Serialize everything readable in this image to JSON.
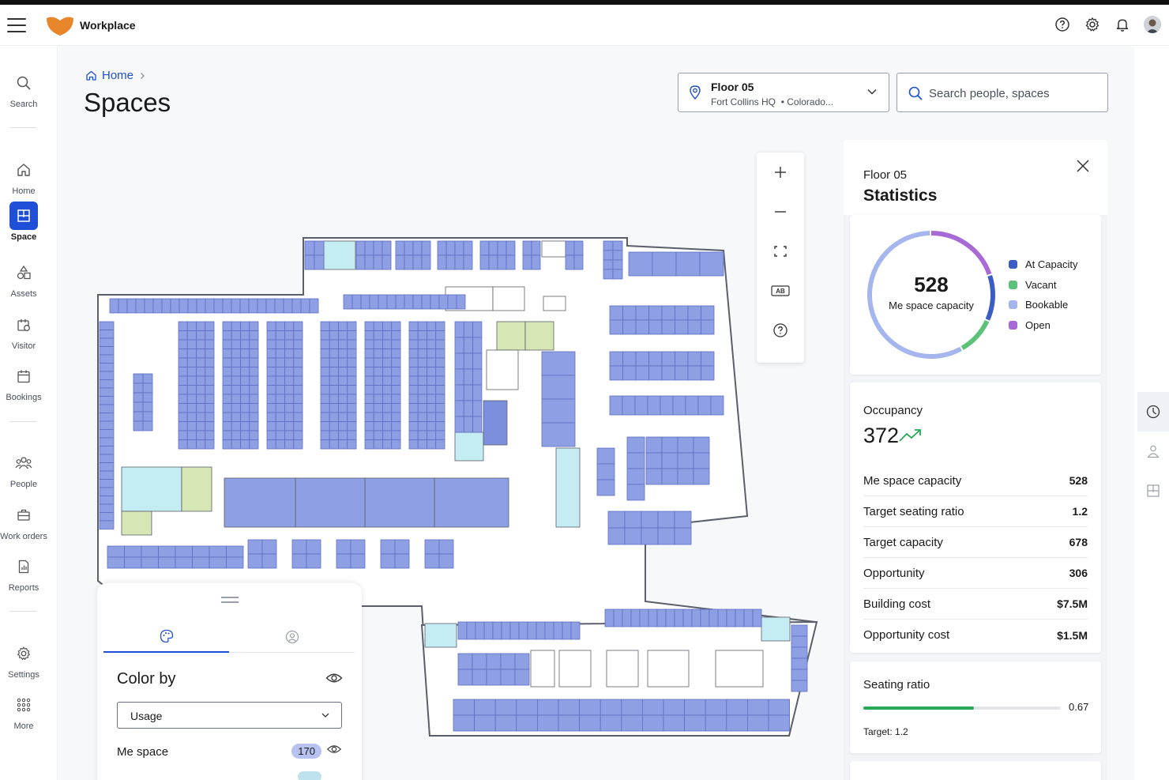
{
  "app": {
    "title": "Workplace"
  },
  "sidebar": {
    "items": [
      {
        "label": "Search",
        "icon": "search-icon"
      },
      {
        "label": "Home",
        "icon": "home-icon"
      },
      {
        "label": "Space",
        "icon": "floorplan-icon"
      },
      {
        "label": "Assets",
        "icon": "shapes-icon"
      },
      {
        "label": "Visitor",
        "icon": "visitor-badge-icon"
      },
      {
        "label": "Bookings",
        "icon": "calendar-icon"
      },
      {
        "label": "People",
        "icon": "people-icon"
      },
      {
        "label": "Work orders",
        "icon": "toolbox-icon"
      },
      {
        "label": "Reports",
        "icon": "report-icon"
      },
      {
        "label": "Settings",
        "icon": "gear-icon"
      },
      {
        "label": "More",
        "icon": "grid-dots-icon"
      }
    ]
  },
  "breadcrumb": {
    "home": "Home"
  },
  "page": {
    "title": "Spaces"
  },
  "floor_select": {
    "title": "Floor 05",
    "building": "Fort Collins HQ",
    "location": "• Colorado..."
  },
  "search": {
    "placeholder": "Search people, spaces"
  },
  "map_controls": {
    "label_toggle": "AB"
  },
  "color_panel": {
    "heading": "Color by",
    "select_value": "Usage",
    "rows": [
      {
        "label": "Me space",
        "count": "170"
      }
    ]
  },
  "stats": {
    "floor": "Floor 05",
    "title": "Statistics",
    "donut": {
      "center_value": "528",
      "center_label": "Me space capacity",
      "segments": [
        {
          "name": "At Capacity",
          "color": "#3a5ec6",
          "fraction": 0.12
        },
        {
          "name": "Vacant",
          "color": "#5cc27a",
          "fraction": 0.1
        },
        {
          "name": "Bookable",
          "color": "#a5b6ee",
          "fraction": 0.58
        },
        {
          "name": "Open",
          "color": "#a76ad6",
          "fraction": 0.2
        }
      ]
    },
    "occupancy": {
      "title": "Occupancy",
      "value": "372",
      "rows": [
        {
          "label": "Me space capacity",
          "value": "528"
        },
        {
          "label": "Target seating ratio",
          "value": "1.2"
        },
        {
          "label": "Target capacity",
          "value": "678"
        },
        {
          "label": "Opportunity",
          "value": "306"
        },
        {
          "label": "Building cost",
          "value": "$7.5M"
        },
        {
          "label": "Opportunity cost",
          "value": "$1.5M"
        }
      ]
    },
    "seating_ratio": {
      "title": "Seating ratio",
      "value": "0.67",
      "fraction": 0.56,
      "target": "Target: 1.2"
    }
  },
  "colors": {
    "accent": "#1e4fd6",
    "desk_blue": "#8f9fe3",
    "desk_blue_dark": "#7c8fdc",
    "vacant_green": "#d6e6b5",
    "open_cyan": "#c5ecf3",
    "wall": "#5a5f6a"
  }
}
